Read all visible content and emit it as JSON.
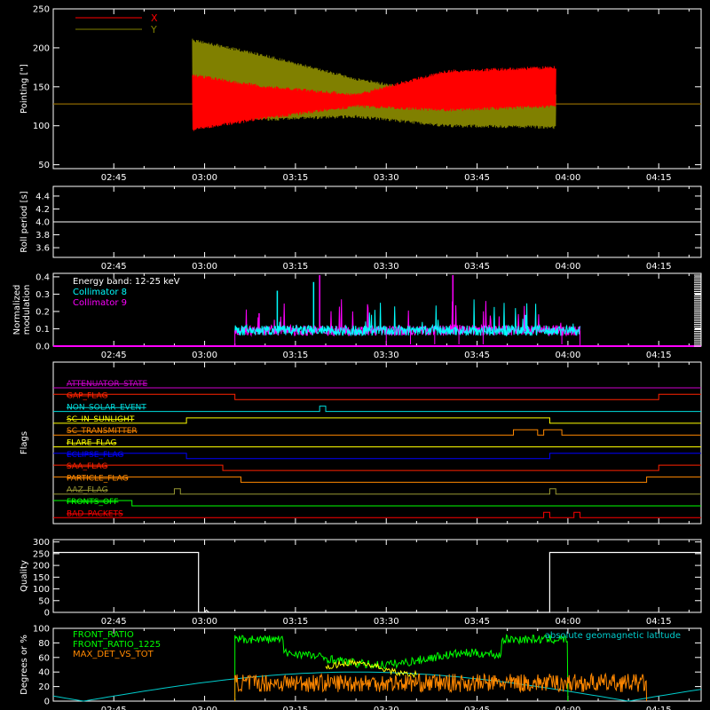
{
  "time_ticks": [
    "02:45",
    "03:00",
    "03:15",
    "03:30",
    "03:45",
    "04:00",
    "04:15"
  ],
  "colors": {
    "red": "#ff0000",
    "olive": "#b8a200",
    "cyan": "#00ffff",
    "magenta": "#ff00ff",
    "white": "#ffffff",
    "green": "#00ff00",
    "orange": "#ff8800",
    "yellow": "#ffff00",
    "blue": "#0000ff",
    "purple": "#cc00cc",
    "darkred": "#cc0000",
    "khaki": "#999933"
  },
  "chart_data": [
    {
      "type": "line",
      "ylabel": "Pointing [\"]",
      "ylim": [
        45,
        250
      ],
      "yticks": [
        50,
        100,
        150,
        200,
        250
      ],
      "xlim": [
        "02:35",
        "04:22"
      ],
      "series": [
        {
          "name": "X",
          "color": "#ff0000",
          "baseline": 128,
          "start": "02:58",
          "end": "03:58",
          "envelope_lo": [
            [
              "02:58",
              95
            ],
            [
              "03:10",
              110
            ],
            [
              "03:25",
              125
            ],
            [
              "03:40",
              120
            ],
            [
              "03:58",
              125
            ]
          ],
          "envelope_hi": [
            [
              "02:58",
              165
            ],
            [
              "03:10",
              150
            ],
            [
              "03:25",
              140
            ],
            [
              "03:40",
              170
            ],
            [
              "03:58",
              175
            ]
          ]
        },
        {
          "name": "Y",
          "color": "#808000",
          "baseline": 128,
          "start": "02:58",
          "end": "03:58",
          "envelope_lo": [
            [
              "02:58",
              120
            ],
            [
              "03:10",
              108
            ],
            [
              "03:25",
              112
            ],
            [
              "03:40",
              100
            ],
            [
              "03:58",
              98
            ]
          ],
          "envelope_hi": [
            [
              "02:58",
              210
            ],
            [
              "03:10",
              190
            ],
            [
              "03:25",
              160
            ],
            [
              "03:40",
              140
            ],
            [
              "03:58",
              142
            ]
          ]
        }
      ]
    },
    {
      "type": "line",
      "ylabel": "Roll period [s]",
      "ylim": [
        3.45,
        4.55
      ],
      "yticks": [
        "3.6",
        "3.8",
        "4.0",
        "4.2",
        "4.4"
      ],
      "series": [
        {
          "values_const": 4.0,
          "color": "#ffffff"
        }
      ]
    },
    {
      "type": "line",
      "ylabel_lines": [
        "Normalized",
        "modulation"
      ],
      "ylim": [
        0,
        0.42
      ],
      "yticks": [
        "0.0",
        "0.1",
        "0.2",
        "0.3",
        "0.4"
      ],
      "annotation": "Energy band: 12-25 keV",
      "series": [
        {
          "name": "Collimator 8",
          "color": "#00ffff",
          "start": "03:05",
          "end": "04:02",
          "level": 0.09
        },
        {
          "name": "Collimator 9",
          "color": "#ff00ff",
          "start": "03:05",
          "end": "04:02",
          "level": 0.09
        }
      ]
    },
    {
      "type": "line",
      "ylabel": "Flags",
      "flags": [
        {
          "label": "ATTENUATOR_STATE",
          "color": "#cc00cc"
        },
        {
          "label": "GAP_FLAG",
          "color": "#ff2200"
        },
        {
          "label": "NON_SOLAR_EVENT",
          "color": "#00dddd"
        },
        {
          "label": "SC_IN_SUNLIGHT",
          "color": "#ffff00"
        },
        {
          "label": "SC_TRANSMITTER",
          "color": "#ff8800"
        },
        {
          "label": "FLARE_FLAG",
          "color": "#ffff00"
        },
        {
          "label": "ECLIPSE_FLAG",
          "color": "#0000ff"
        },
        {
          "label": "SAA_FLAG",
          "color": "#ff2200"
        },
        {
          "label": "PARTICLE_FLAG",
          "color": "#ff8800"
        },
        {
          "label": "AAZ_FLAG",
          "color": "#999933"
        },
        {
          "label": "FRONTS_OFF",
          "color": "#00ff00"
        },
        {
          "label": "BAD_PACKETS",
          "color": "#ff0000"
        }
      ]
    },
    {
      "type": "line",
      "ylabel": "Quality",
      "ylim": [
        0,
        310
      ],
      "yticks": [
        0,
        50,
        100,
        150,
        200,
        250,
        300
      ],
      "series": [
        {
          "color": "#ffffff",
          "segments": [
            [
              "02:35",
              255
            ],
            [
              "02:59",
              255
            ],
            [
              "02:59",
              0
            ],
            [
              "03:57",
              0
            ],
            [
              "03:57",
              255
            ],
            [
              "04:22",
              255
            ]
          ]
        }
      ]
    },
    {
      "type": "line",
      "ylabel": "Degrees or %",
      "ylim": [
        0,
        100
      ],
      "yticks": [
        0,
        20,
        40,
        60,
        80,
        100
      ],
      "annotation": "absolute geomagnetic latitude",
      "series": [
        {
          "name": "FRONT_RATIO",
          "color": "#00ff00"
        },
        {
          "name": "FRONT_RATIO_1225",
          "color": "#00ff00"
        },
        {
          "name": "MAX_DET_VS_TOT",
          "color": "#ff8800"
        }
      ]
    }
  ]
}
